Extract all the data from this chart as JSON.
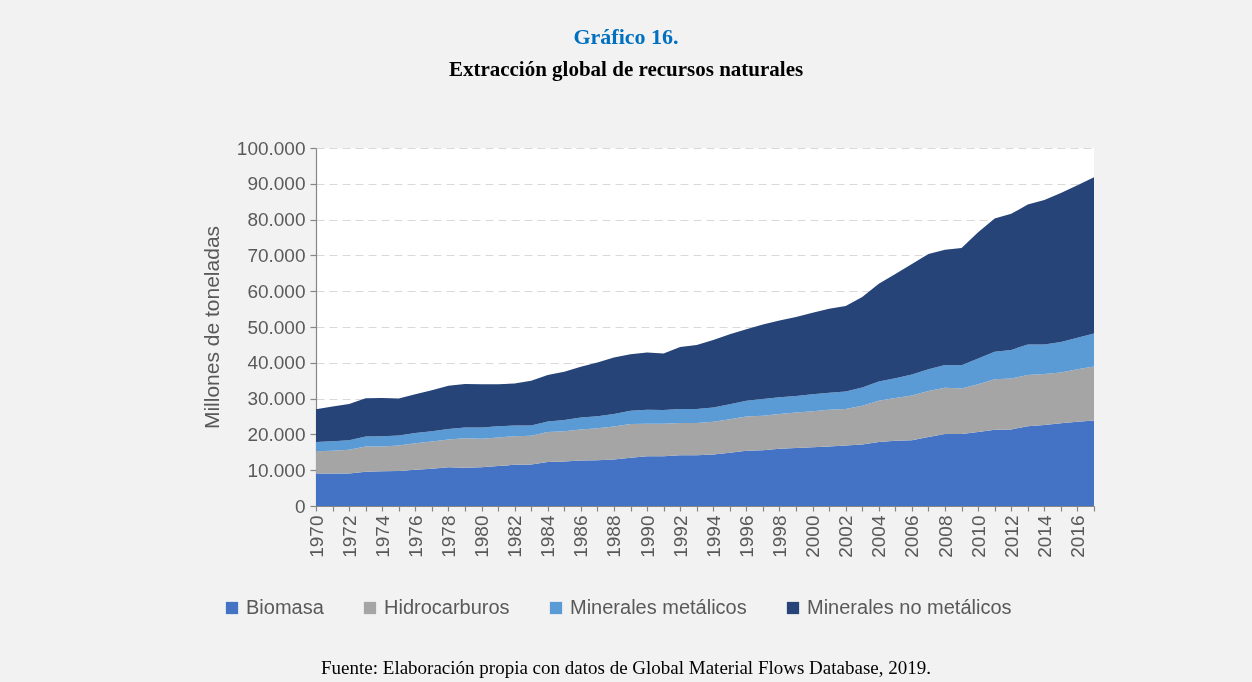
{
  "chart_data": {
    "type": "area",
    "title": "Gráfico 16.",
    "subtitle": "Extracción global de recursos naturales",
    "ylabel": "Millones de toneladas",
    "annotations": [
      "Fuente: Elaboración propia con datos de Global Material Flows Database, 2019."
    ],
    "x": [
      1970,
      1971,
      1972,
      1973,
      1974,
      1975,
      1976,
      1977,
      1978,
      1979,
      1980,
      1981,
      1982,
      1983,
      1984,
      1985,
      1986,
      1987,
      1988,
      1989,
      1990,
      1991,
      1992,
      1993,
      1994,
      1995,
      1996,
      1997,
      1998,
      1999,
      2000,
      2001,
      2002,
      2003,
      2004,
      2005,
      2006,
      2007,
      2008,
      2009,
      2010,
      2011,
      2012,
      2013,
      2014,
      2015,
      2016,
      2017
    ],
    "xlim": [
      1970,
      2017
    ],
    "xticks": [
      1970,
      {
        "value": 1971,
        "label": null
      },
      1972,
      {
        "value": 1973,
        "label": null
      },
      1974,
      {
        "value": 1975,
        "label": null
      },
      1976,
      {
        "value": 1977,
        "label": null
      },
      1978,
      {
        "value": 1979,
        "label": null
      },
      1980,
      {
        "value": 1981,
        "label": null
      },
      1982,
      {
        "value": 1983,
        "label": null
      },
      1984,
      {
        "value": 1985,
        "label": null
      },
      1986,
      {
        "value": 1987,
        "label": null
      },
      1988,
      {
        "value": 1989,
        "label": null
      },
      1990,
      {
        "value": 1991,
        "label": null
      },
      1992,
      {
        "value": 1993,
        "label": null
      },
      1994,
      {
        "value": 1995,
        "label": null
      },
      1996,
      {
        "value": 1997,
        "label": null
      },
      1998,
      {
        "value": 1999,
        "label": null
      },
      2000,
      {
        "value": 2001,
        "label": null
      },
      2002,
      {
        "value": 2003,
        "label": null
      },
      2004,
      {
        "value": 2005,
        "label": null
      },
      2006,
      {
        "value": 2007,
        "label": null
      },
      2008,
      {
        "value": 2009,
        "label": null
      },
      2010,
      {
        "value": 2011,
        "label": null
      },
      2012,
      {
        "value": 2013,
        "label": null
      },
      2014,
      {
        "value": 2015,
        "label": null
      },
      2016,
      {
        "value": 2017,
        "label": null
      }
    ],
    "ylim": [
      0,
      100000
    ],
    "yticks": [
      0,
      {
        "value": 10000,
        "label": "10.000"
      },
      {
        "value": 20000,
        "label": "20.000"
      },
      {
        "value": 30000,
        "label": "30.000"
      },
      {
        "value": 40000,
        "label": "40.000"
      },
      {
        "value": 50000,
        "label": "50.000"
      },
      {
        "value": 60000,
        "label": "60.000"
      },
      {
        "value": 70000,
        "label": "70.000"
      },
      {
        "value": 80000,
        "label": "80.000"
      },
      {
        "value": 90000,
        "label": "90.000"
      },
      {
        "value": 100000,
        "label": "100.000"
      }
    ],
    "stacked": true,
    "grid": "y",
    "legend": "bottom",
    "series": [
      {
        "name": "Biomasa",
        "color": "#4472c4",
        "values": [
          9100,
          9100,
          9100,
          9600,
          9700,
          9800,
          10100,
          10400,
          10800,
          10700,
          10800,
          11200,
          11500,
          11600,
          12300,
          12400,
          12700,
          12800,
          13000,
          13500,
          13900,
          13900,
          14200,
          14200,
          14400,
          14900,
          15400,
          15600,
          16000,
          16200,
          16400,
          16600,
          16900,
          17200,
          17900,
          18200,
          18400,
          19300,
          20100,
          20100,
          20700,
          21300,
          21400,
          22300,
          22600,
          23100,
          23500,
          23900
        ]
      },
      {
        "name": "Hidrocarburos",
        "color": "#a5a5a5",
        "values": [
          6200,
          6300,
          6600,
          7000,
          6900,
          7100,
          7400,
          7600,
          7800,
          8200,
          8000,
          7900,
          8000,
          8000,
          8400,
          8500,
          8700,
          8900,
          9200,
          9400,
          9100,
          9100,
          9000,
          9000,
          9100,
          9300,
          9600,
          9600,
          9700,
          9900,
          10100,
          10300,
          10200,
          10800,
          11500,
          12000,
          12500,
          12800,
          12900,
          12700,
          13300,
          14100,
          14200,
          14300,
          14300,
          14200,
          14700,
          15100
        ]
      },
      {
        "name": "Minerales metálicos",
        "color": "#5b9bd5",
        "values": [
          2600,
          2700,
          2700,
          2800,
          2900,
          2800,
          2900,
          2900,
          2900,
          3000,
          3100,
          3200,
          3000,
          2900,
          2900,
          3100,
          3300,
          3400,
          3500,
          3700,
          3900,
          3800,
          3900,
          3900,
          4000,
          4200,
          4400,
          4700,
          4700,
          4600,
          4700,
          4700,
          4900,
          5100,
          5400,
          5500,
          5800,
          6100,
          6400,
          6500,
          7200,
          7700,
          8000,
          8500,
          8200,
          8500,
          8800,
          9200
        ]
      },
      {
        "name": "Minerales no metálicos",
        "color": "#264478",
        "values": [
          9100,
          9700,
          10100,
          10700,
          10700,
          10300,
          10800,
          11400,
          12100,
          12200,
          12100,
          11700,
          11700,
          12500,
          13000,
          13500,
          14200,
          15000,
          15800,
          15800,
          16000,
          15800,
          17300,
          17900,
          18900,
          19600,
          20000,
          20800,
          21400,
          22100,
          22800,
          23500,
          23900,
          25300,
          27300,
          29100,
          30900,
          32200,
          32200,
          32800,
          35300,
          37200,
          38000,
          39100,
          40400,
          41600,
          42600,
          43600
        ]
      }
    ]
  }
}
